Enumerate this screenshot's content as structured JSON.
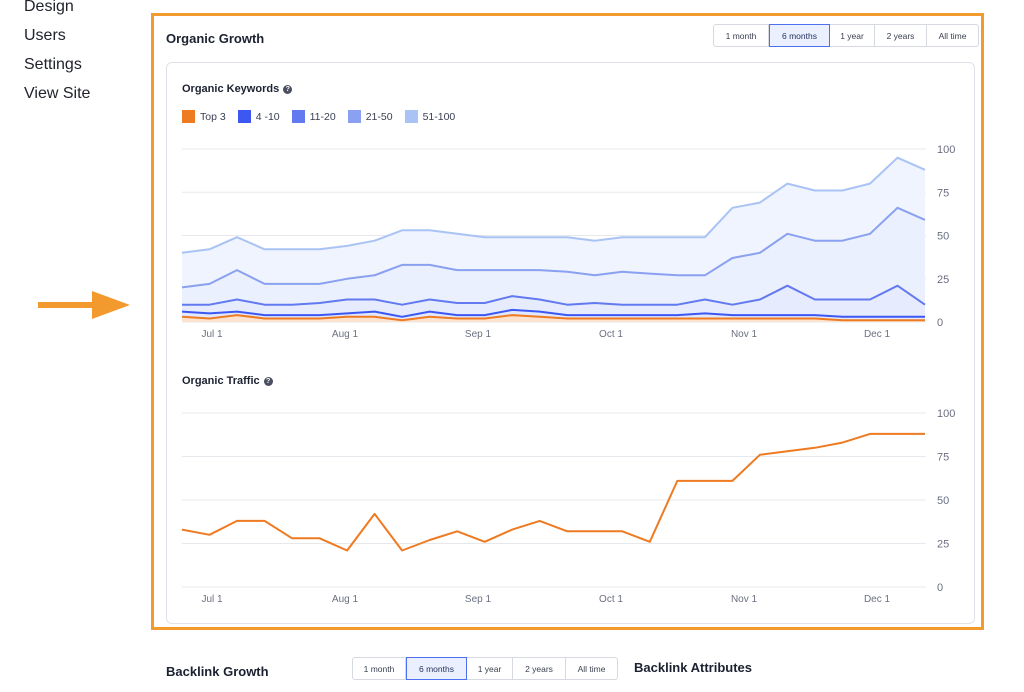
{
  "sidebar": {
    "items": [
      "Design",
      "Users",
      "Settings",
      "View Site"
    ]
  },
  "colors": {
    "accent_outline": "#f29a2e",
    "active_range_border": "#4e6ff2",
    "top3": "#ee7a22",
    "r4_10": "#3d58f2",
    "r11_20": "#6279f0",
    "r21_50": "#8aa0f0",
    "r51_100": "#aac3f5"
  },
  "organic_growth": {
    "title": "Organic Growth",
    "ranges": [
      "1 month",
      "6 months",
      "1 year",
      "2 years",
      "All time"
    ],
    "active_range": "6 months"
  },
  "chart_data": [
    {
      "type": "area",
      "title": "Organic Keywords",
      "x": [
        "Jun 18",
        "Jun 25",
        "Jul 2",
        "Jul 9",
        "Jul 16",
        "Jul 23",
        "Jul 30",
        "Aug 6",
        "Aug 13",
        "Aug 20",
        "Aug 27",
        "Sep 3",
        "Sep 10",
        "Sep 17",
        "Sep 24",
        "Oct 1",
        "Oct 8",
        "Oct 15",
        "Oct 22",
        "Oct 29",
        "Nov 5",
        "Nov 10",
        "Nov 15",
        "Nov 20",
        "Nov 25",
        "Dec 1",
        "Dec 6",
        "Dec 12"
      ],
      "xticks": [
        "Jul 1",
        "Aug 1",
        "Sep 1",
        "Oct 1",
        "Nov 1",
        "Dec 1"
      ],
      "yticks": [
        0,
        25,
        50,
        75,
        100
      ],
      "ylim": [
        0,
        100
      ],
      "series": [
        {
          "name": "Top 3",
          "values": [
            3,
            2,
            4,
            2,
            2,
            2,
            3,
            3,
            1,
            3,
            2,
            2,
            4,
            3,
            2,
            2,
            2,
            2,
            2,
            2,
            2,
            2,
            2,
            2,
            1,
            1,
            1,
            1
          ]
        },
        {
          "name": "4 -10",
          "values": [
            6,
            5,
            6,
            4,
            4,
            4,
            5,
            6,
            3,
            6,
            4,
            4,
            7,
            6,
            4,
            4,
            4,
            4,
            4,
            5,
            4,
            4,
            4,
            4,
            3,
            3,
            3,
            3
          ]
        },
        {
          "name": "11-20",
          "values": [
            10,
            10,
            13,
            10,
            10,
            11,
            13,
            13,
            10,
            13,
            11,
            11,
            15,
            13,
            10,
            11,
            10,
            10,
            10,
            13,
            10,
            13,
            21,
            13,
            13,
            13,
            21,
            10
          ]
        },
        {
          "name": "21-50",
          "values": [
            20,
            22,
            30,
            22,
            22,
            22,
            25,
            27,
            33,
            33,
            30,
            30,
            30,
            30,
            29,
            27,
            29,
            28,
            27,
            27,
            37,
            40,
            51,
            47,
            47,
            51,
            66,
            59
          ]
        },
        {
          "name": "51-100",
          "values": [
            40,
            42,
            49,
            42,
            42,
            42,
            44,
            47,
            53,
            53,
            51,
            49,
            49,
            49,
            49,
            47,
            49,
            49,
            49,
            49,
            66,
            69,
            80,
            76,
            76,
            80,
            95,
            88
          ]
        }
      ]
    },
    {
      "type": "line",
      "title": "Organic Traffic",
      "x": [
        "Jun 18",
        "Jun 25",
        "Jul 2",
        "Jul 9",
        "Jul 16",
        "Jul 23",
        "Jul 30",
        "Aug 6",
        "Aug 13",
        "Aug 20",
        "Aug 27",
        "Sep 3",
        "Sep 10",
        "Sep 17",
        "Sep 24",
        "Oct 1",
        "Oct 8",
        "Oct 15",
        "Oct 22",
        "Oct 29",
        "Nov 5",
        "Nov 10",
        "Nov 15",
        "Nov 20",
        "Nov 25",
        "Dec 1",
        "Dec 6",
        "Dec 12"
      ],
      "xticks": [
        "Jul 1",
        "Aug 1",
        "Sep 1",
        "Oct 1",
        "Nov 1",
        "Dec 1"
      ],
      "yticks": [
        0,
        25,
        50,
        75,
        100
      ],
      "ylim": [
        0,
        100
      ],
      "series": [
        {
          "name": "Organic Traffic",
          "values": [
            33,
            30,
            38,
            38,
            28,
            28,
            21,
            42,
            21,
            27,
            32,
            26,
            33,
            38,
            32,
            32,
            32,
            26,
            61,
            61,
            61,
            76,
            78,
            80,
            83,
            88,
            88,
            88
          ]
        }
      ]
    }
  ],
  "backlink_growth": {
    "title": "Backlink Growth",
    "ranges": [
      "1 month",
      "6 months",
      "1 year",
      "2 years",
      "All time"
    ],
    "active_range": "6 months"
  },
  "backlink_attributes": {
    "title": "Backlink Attributes"
  }
}
